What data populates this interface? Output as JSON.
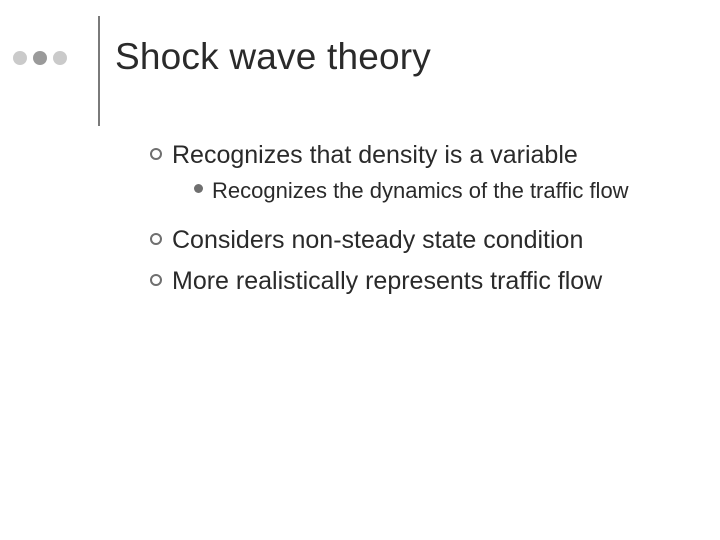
{
  "colors": {
    "dot1": "#cacaca",
    "dot2": "#9a9a9a",
    "dot3": "#cacaca",
    "vline": "#7a7a7a",
    "ring_border": "#6f6f6f",
    "solid_bullet": "#6f6f6f",
    "text": "#2a2a2a",
    "background": "#ffffff"
  },
  "title": "Shock wave theory",
  "bullets": {
    "b1": "Recognizes that density is a variable",
    "b1_1": "Recognizes the dynamics of the traffic flow",
    "b2": "Considers non-steady state condition",
    "b3": "More realistically represents traffic flow"
  }
}
